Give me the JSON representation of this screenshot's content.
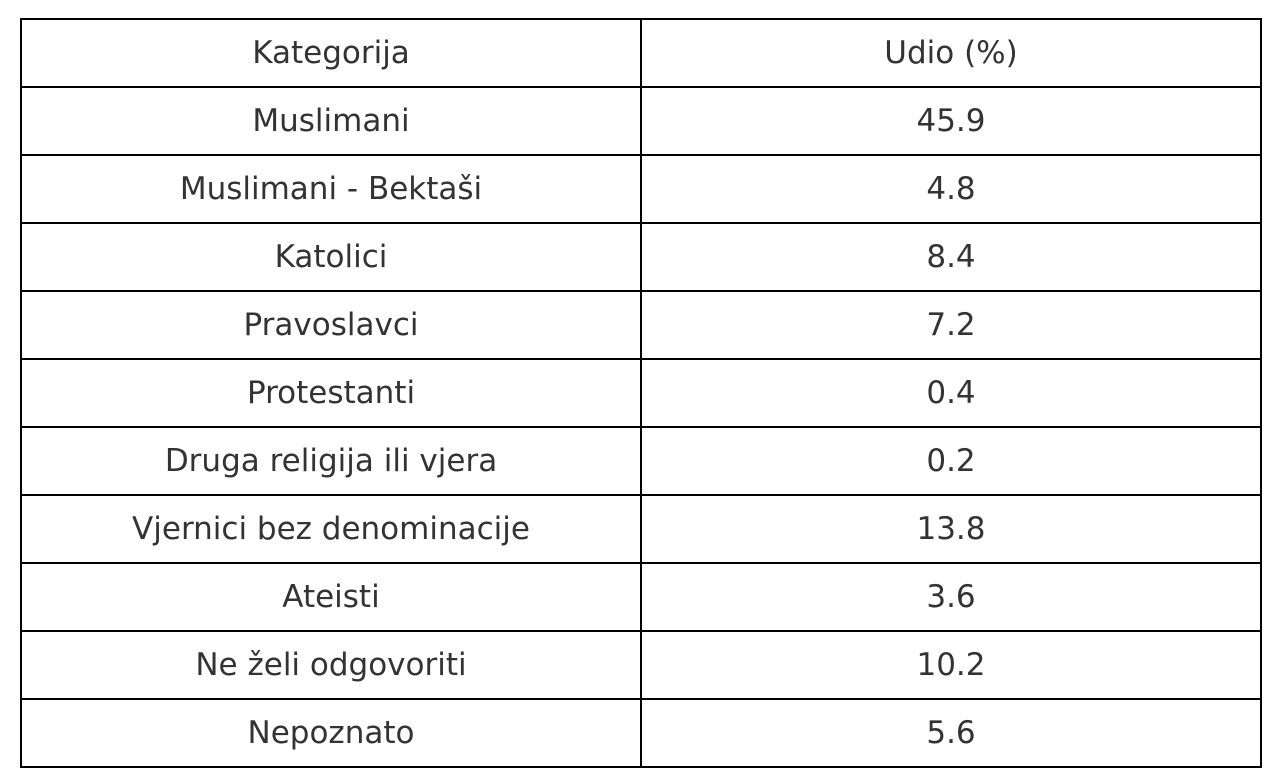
{
  "chart_data": {
    "type": "table",
    "columns": [
      "Kategorija",
      "Udio (%)"
    ],
    "rows": [
      {
        "category": "Muslimani",
        "value": "45.9"
      },
      {
        "category": "Muslimani - Bektaši",
        "value": "4.8"
      },
      {
        "category": "Katolici",
        "value": "8.4"
      },
      {
        "category": "Pravoslavci",
        "value": "7.2"
      },
      {
        "category": "Protestanti",
        "value": "0.4"
      },
      {
        "category": "Druga religija ili vjera",
        "value": "0.2"
      },
      {
        "category": "Vjernici bez denominacije",
        "value": "13.8"
      },
      {
        "category": "Ateisti",
        "value": "3.6"
      },
      {
        "category": "Ne želi odgovoriti",
        "value": "10.2"
      },
      {
        "category": "Nepoznato",
        "value": "5.6"
      }
    ]
  },
  "colors": {
    "text": "#333333",
    "border": "#000000",
    "background": "#ffffff"
  }
}
